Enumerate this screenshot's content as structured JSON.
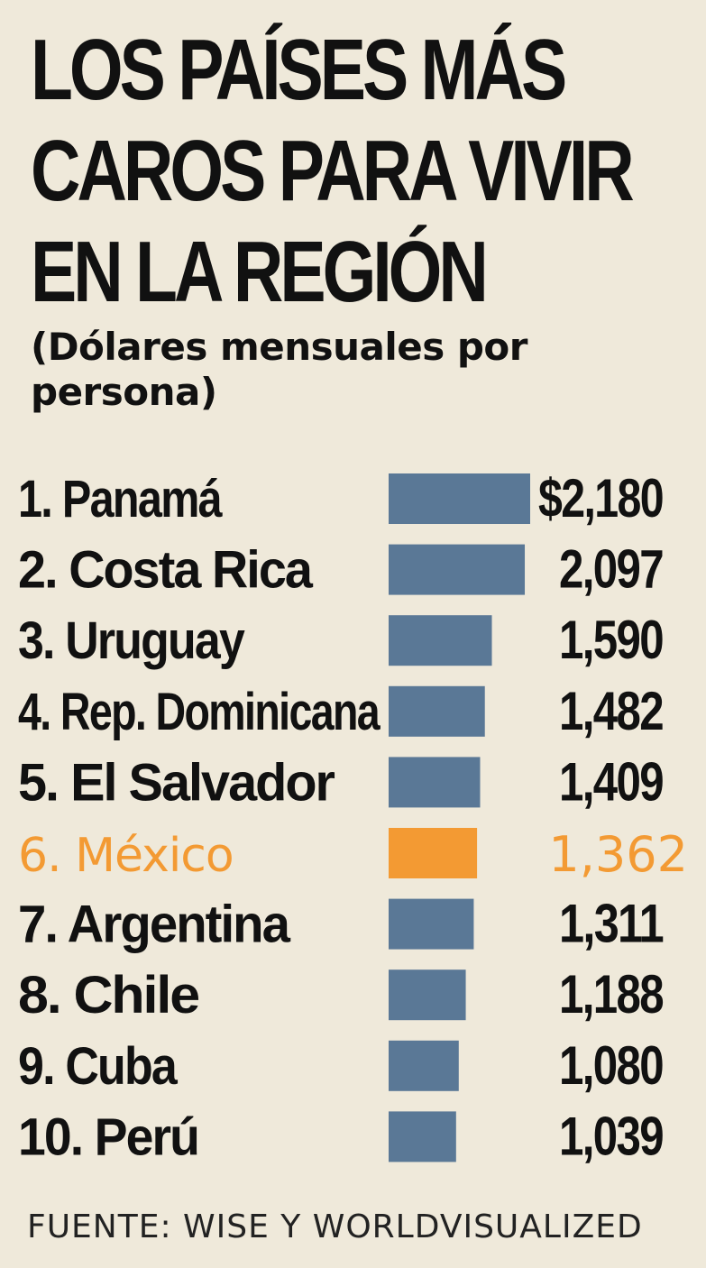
{
  "title_lines": [
    "LOS PAÍSES MÁS",
    "CAROS PARA VIVIR",
    "EN LA REGIÓN"
  ],
  "subtitle": "(Dólares mensuales por persona)",
  "source": "FUENTE: WISE Y WORLDVISUALIZED",
  "colors": {
    "background": "#efe9da",
    "bar": "#5a7896",
    "highlight": "#f39a33",
    "text": "#111111"
  },
  "chart_data": {
    "type": "bar",
    "orientation": "horizontal",
    "categories": [
      "1. Panamá",
      "2. Costa Rica",
      "3. Uruguay",
      "4. Rep. Dominicana",
      "5. El Salvador",
      "6. México",
      "7. Argentina",
      "8. Chile",
      "9. Cuba",
      "10. Perú"
    ],
    "values": [
      2180,
      2097,
      1590,
      1482,
      1409,
      1362,
      1311,
      1188,
      1080,
      1039
    ],
    "value_labels": [
      "$2,180",
      "2,097",
      "1,590",
      "1,482",
      "1,409",
      "1,362",
      "1,311",
      "1,188",
      "1,080",
      "1,039"
    ],
    "highlight_index": 5,
    "title": "LOS PAÍSES MÁS CAROS PARA VIVIR EN LA REGIÓN",
    "subtitle": "(Dólares mensuales por persona)",
    "xlabel": "",
    "ylabel": "",
    "grid": false,
    "legend": "none"
  }
}
